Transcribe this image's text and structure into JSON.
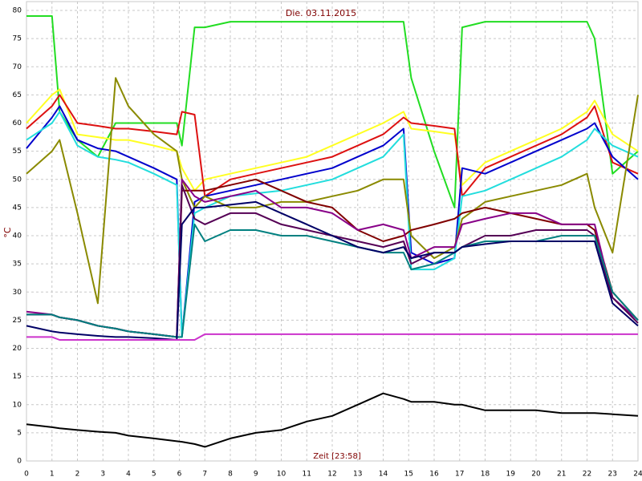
{
  "chart_data": {
    "type": "line",
    "title": "Die. 03.11.2015",
    "x_label": "Zeit [23:58]",
    "y_label": "°C",
    "x": [
      0,
      1,
      1.3,
      2,
      2.8,
      3.5,
      4,
      5,
      5.9,
      6.1,
      6.6,
      7,
      8,
      9,
      10,
      11,
      12,
      13,
      14,
      14.8,
      15.1,
      16,
      16.8,
      17.1,
      18,
      19,
      20,
      21,
      22,
      22.3,
      23,
      24
    ],
    "xlim": [
      0,
      24
    ],
    "xticks": [
      0,
      1,
      2,
      3,
      4,
      5,
      6,
      7,
      8,
      9,
      10,
      11,
      12,
      13,
      14,
      15,
      16,
      17,
      18,
      19,
      20,
      21,
      22,
      23,
      24
    ],
    "ylim": [
      0,
      80
    ],
    "yticks": [
      0,
      5,
      10,
      15,
      20,
      25,
      30,
      35,
      40,
      45,
      50,
      55,
      60,
      65,
      70,
      75,
      80
    ],
    "grid": true,
    "series": [
      {
        "color": "#22dd22",
        "values": [
          79,
          79,
          62,
          57,
          54,
          60,
          60,
          60,
          60,
          56,
          77,
          77,
          78,
          78,
          78,
          78,
          78,
          78,
          78,
          78,
          68,
          55,
          45,
          77,
          78,
          78,
          78,
          78,
          78,
          75,
          51,
          55
        ]
      },
      {
        "color": "#ffff22",
        "values": [
          60,
          65,
          66,
          58,
          57.5,
          57,
          57,
          56,
          55,
          52,
          48,
          50,
          51,
          52,
          53,
          54,
          56,
          58,
          60,
          62,
          59,
          58.5,
          58,
          49,
          53,
          55,
          57,
          59,
          62,
          64,
          58,
          55
        ]
      },
      {
        "color": "#dd1111",
        "values": [
          59,
          63,
          65,
          60,
          59.5,
          59,
          59,
          58.5,
          58,
          62,
          61.5,
          47,
          50,
          51,
          52,
          53,
          54,
          56,
          58,
          61,
          60,
          59.5,
          59,
          47,
          52,
          54,
          56,
          58,
          61,
          63,
          53,
          51
        ]
      },
      {
        "color": "#0000cc",
        "values": [
          55.5,
          61,
          63,
          57,
          55.5,
          55,
          54,
          52,
          50,
          22,
          46,
          47,
          48,
          49,
          50,
          51,
          52,
          54,
          56,
          59,
          37,
          35,
          36,
          52,
          51,
          53,
          55,
          57,
          59,
          60,
          54,
          50
        ]
      },
      {
        "color": "#22dddd",
        "values": [
          57,
          60,
          62,
          56,
          54,
          53.5,
          53,
          51,
          49,
          22,
          44,
          45,
          47,
          47.5,
          48,
          49,
          50,
          52,
          54,
          58,
          34,
          34,
          36,
          47,
          48,
          50,
          52,
          54,
          57,
          59,
          56,
          54
        ]
      },
      {
        "color": "#8a8a00",
        "values": [
          51,
          55,
          57,
          44,
          28,
          68,
          63,
          58,
          55,
          50,
          45,
          47,
          45,
          45,
          46,
          46,
          47,
          48,
          50,
          50,
          40,
          36,
          38,
          43,
          46,
          47,
          48,
          49,
          51,
          45,
          37,
          65
        ]
      },
      {
        "color": "#800000",
        "values": [
          26,
          26,
          25.5,
          25,
          24,
          23.5,
          23,
          22.5,
          22,
          48,
          48,
          48,
          49,
          50,
          48,
          46,
          45,
          41,
          39,
          40,
          41,
          42,
          43,
          44,
          45,
          44,
          43,
          42,
          42,
          41,
          30,
          25
        ]
      },
      {
        "color": "#880088",
        "values": [
          26.5,
          26,
          25.5,
          25,
          24,
          23.5,
          23,
          22.5,
          22,
          50,
          47,
          46,
          47,
          48,
          45,
          45,
          44,
          41,
          42,
          41,
          36,
          38,
          38,
          42,
          43,
          44,
          44,
          42,
          42,
          42,
          29,
          25
        ]
      },
      {
        "color": "#550055",
        "values": [
          26,
          26,
          25.5,
          25,
          24,
          23.5,
          23,
          22.5,
          22,
          49,
          43,
          42,
          44,
          44,
          42,
          41,
          40,
          39,
          38,
          39,
          35,
          37,
          37,
          38,
          40,
          40,
          41,
          41,
          41,
          40,
          29,
          24.5
        ]
      },
      {
        "color": "#008080",
        "values": [
          26,
          26,
          25.5,
          25,
          24,
          23.5,
          23,
          22.5,
          22,
          22,
          42,
          39,
          41,
          41,
          40,
          40,
          39,
          38,
          37,
          37,
          34,
          35,
          37,
          38,
          39,
          39,
          39,
          40,
          40,
          40,
          30,
          25
        ]
      },
      {
        "color": "#000066",
        "values": [
          24,
          23,
          22.8,
          22.5,
          22.2,
          22,
          22,
          21.8,
          21.5,
          42,
          45,
          45,
          45.5,
          46,
          44,
          42,
          40,
          38,
          37,
          38,
          36,
          37,
          37,
          38,
          38.5,
          39,
          39,
          39,
          39,
          39,
          28,
          24
        ]
      },
      {
        "color": "#cc33cc",
        "values": [
          22,
          22,
          21.5,
          21.5,
          21.5,
          21.5,
          21.5,
          21.5,
          21.5,
          21.5,
          21.5,
          22.5,
          22.5,
          22.5,
          22.5,
          22.5,
          22.5,
          22.5,
          22.5,
          22.5,
          22.5,
          22.5,
          22.5,
          22.5,
          22.5,
          22.5,
          22.5,
          22.5,
          22.5,
          22.5,
          22.5,
          22.5
        ]
      },
      {
        "color": "#000000",
        "values": [
          6.5,
          6,
          5.8,
          5.5,
          5.2,
          5,
          4.5,
          4,
          3.5,
          3.4,
          3,
          2.5,
          4,
          5,
          5.5,
          7,
          8,
          10,
          12,
          11,
          10.5,
          10.5,
          10,
          10,
          9,
          9,
          9,
          8.5,
          8.5,
          8.5,
          8.3,
          8
        ]
      }
    ]
  }
}
